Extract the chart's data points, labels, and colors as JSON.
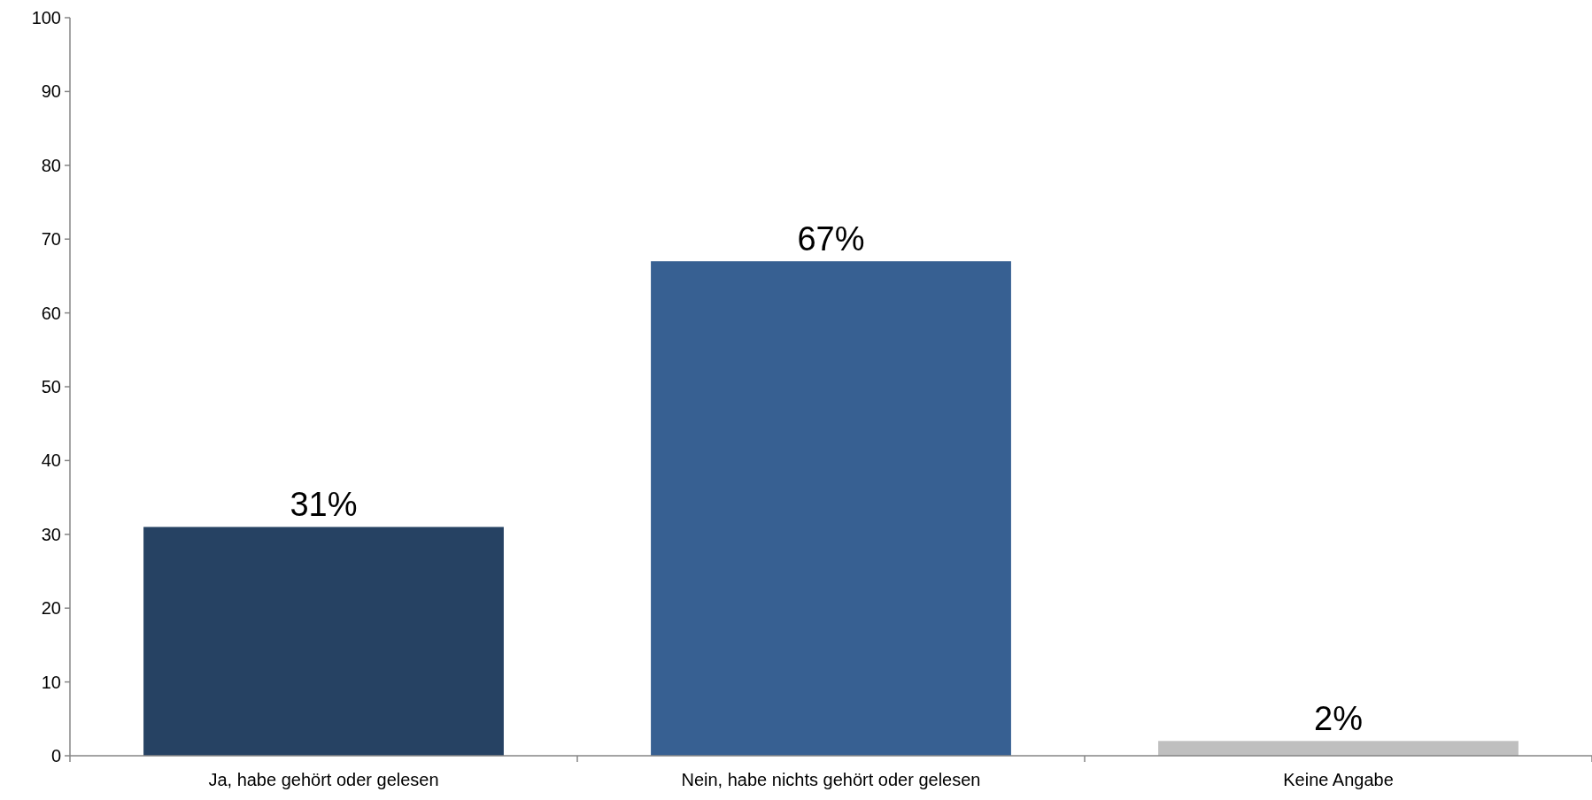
{
  "chart_data": {
    "type": "bar",
    "categories": [
      "Ja, habe gehört oder gelesen",
      "Nein, habe nichts gehört oder gelesen",
      "Keine Angabe"
    ],
    "values": [
      31,
      67,
      2
    ],
    "colors": [
      "#264263",
      "#376092",
      "#bfbfbf"
    ],
    "value_labels": [
      "31%",
      "67%",
      "2%"
    ],
    "ylim": [
      0,
      100
    ],
    "yticks": [
      0,
      10,
      20,
      30,
      40,
      50,
      60,
      70,
      80,
      90,
      100
    ],
    "grid": false
  }
}
